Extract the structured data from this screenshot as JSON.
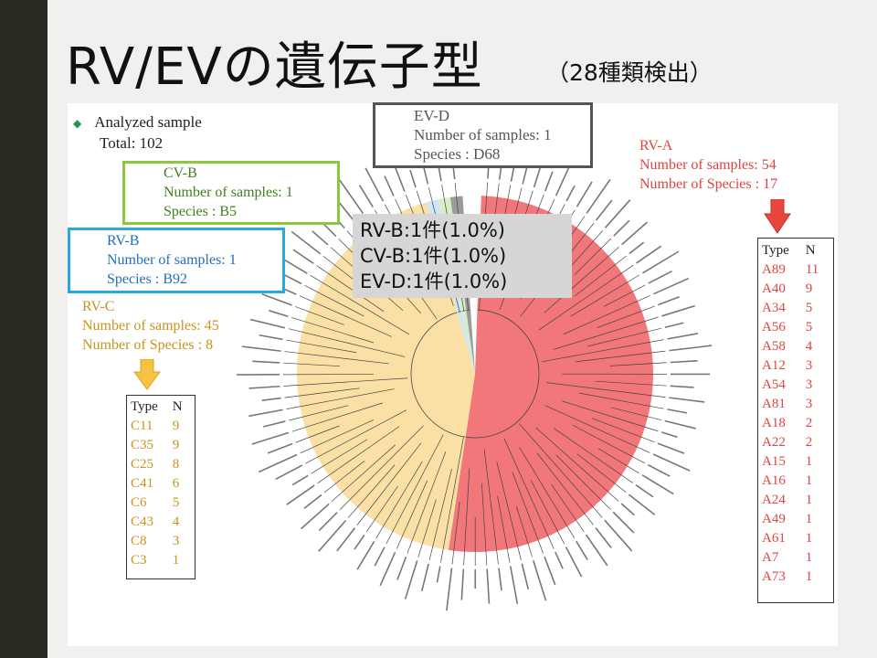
{
  "slide": {
    "title": "RV/EVの遺伝子型",
    "subtitle": "（28種類検出）"
  },
  "analyzed": {
    "bullet": "◆",
    "heading": "Analyzed sample",
    "total": "Total: 102"
  },
  "ev_d": {
    "name": "EV-D",
    "samples": "Number of samples: 1",
    "species": "Species : D68",
    "color": "#555555"
  },
  "cv_b": {
    "name": "CV-B",
    "samples": "Number of samples: 1",
    "species": "Species : B5",
    "color": "#3f7f1f",
    "border": "#8dc63f"
  },
  "rv_b": {
    "name": "RV-B",
    "samples": "Number of samples: 1",
    "species": "Species : B92",
    "color": "#1f6fbf",
    "border": "#29a8e0"
  },
  "rv_a": {
    "name": "RV-A",
    "samples": "Number of samples: 54",
    "species": "Number of Species : 17",
    "color": "#e0443f"
  },
  "rv_c": {
    "name": "RV-C",
    "samples": "Number of samples: 45",
    "species": "Number of Species : 8",
    "color": "#c8941a"
  },
  "overlay": {
    "line1": "RV-B:1件(1.0%)",
    "line2": "CV-B:1件(1.0%)",
    "line3": "EV-D:1件(1.0%)"
  },
  "table_headers": {
    "type": "Type",
    "n": "N"
  },
  "rv_a_table": [
    {
      "type": "A89",
      "n": "11"
    },
    {
      "type": "A40",
      "n": "9"
    },
    {
      "type": "A34",
      "n": "5"
    },
    {
      "type": "A56",
      "n": "5"
    },
    {
      "type": "A58",
      "n": "4"
    },
    {
      "type": "A12",
      "n": "3"
    },
    {
      "type": "A54",
      "n": "3"
    },
    {
      "type": "A81",
      "n": "3"
    },
    {
      "type": "A18",
      "n": "2"
    },
    {
      "type": "A22",
      "n": "2"
    },
    {
      "type": "A15",
      "n": "1"
    },
    {
      "type": "A16",
      "n": "1"
    },
    {
      "type": "A24",
      "n": "1"
    },
    {
      "type": "A49",
      "n": "1"
    },
    {
      "type": "A61",
      "n": "1"
    },
    {
      "type": "A7",
      "n": "1"
    },
    {
      "type": "A73",
      "n": "1"
    }
  ],
  "rv_c_table": [
    {
      "type": "C11",
      "n": "9"
    },
    {
      "type": "C35",
      "n": "9"
    },
    {
      "type": "C25",
      "n": "8"
    },
    {
      "type": "C41",
      "n": "6"
    },
    {
      "type": "C6",
      "n": "5"
    },
    {
      "type": "C43",
      "n": "4"
    },
    {
      "type": "C8",
      "n": "3"
    },
    {
      "type": "C3",
      "n": "1"
    }
  ],
  "tree": {
    "clades": [
      {
        "name": "RV-A",
        "count": 54,
        "color": "#f2777a"
      },
      {
        "name": "RV-C",
        "count": 45,
        "color": "#fbe0a6"
      },
      {
        "name": "RV-B",
        "count": 1,
        "color": "#cfe5f5"
      },
      {
        "name": "CV-B",
        "count": 1,
        "color": "#d8edc4"
      },
      {
        "name": "EV-D",
        "count": 1,
        "color": "#9a9a9a"
      }
    ]
  }
}
